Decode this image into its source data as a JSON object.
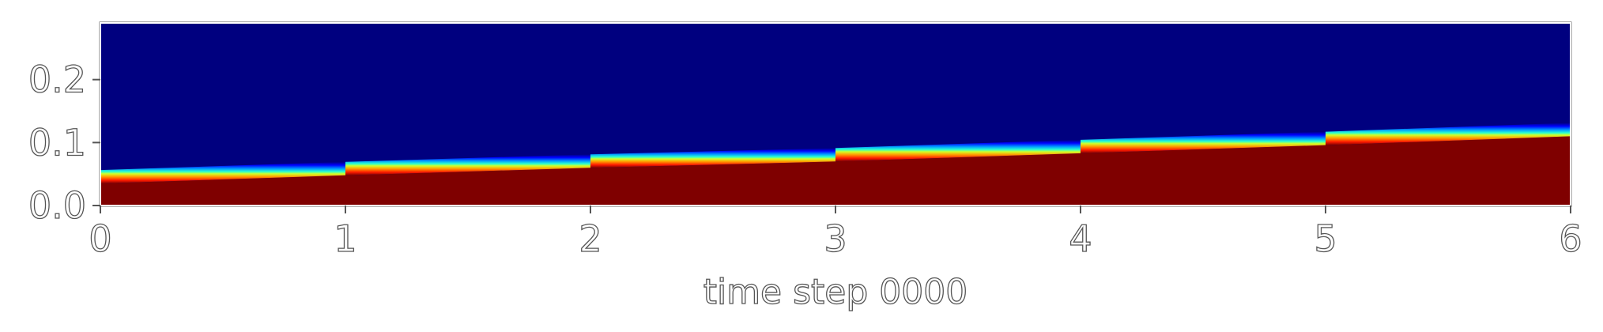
{
  "chart_data": {
    "type": "heatmap",
    "title": "",
    "xlabel": "time step 0000",
    "ylabel": "",
    "xlim": [
      0,
      6
    ],
    "ylim": [
      0.0,
      0.29
    ],
    "x_ticks": [
      "0",
      "1",
      "2",
      "3",
      "4",
      "5",
      "6"
    ],
    "y_ticks": [
      "0.0",
      "0.1",
      "0.2"
    ],
    "colormap": "jet",
    "colors": {
      "low": "#00007f",
      "high": "#7f0000",
      "frame": "#555555"
    },
    "interface": {
      "x": [
        0,
        1,
        2,
        3,
        4,
        5,
        6
      ],
      "y": [
        0.045,
        0.058,
        0.07,
        0.08,
        0.093,
        0.106,
        0.12
      ]
    },
    "grid": false,
    "legend": "none"
  }
}
